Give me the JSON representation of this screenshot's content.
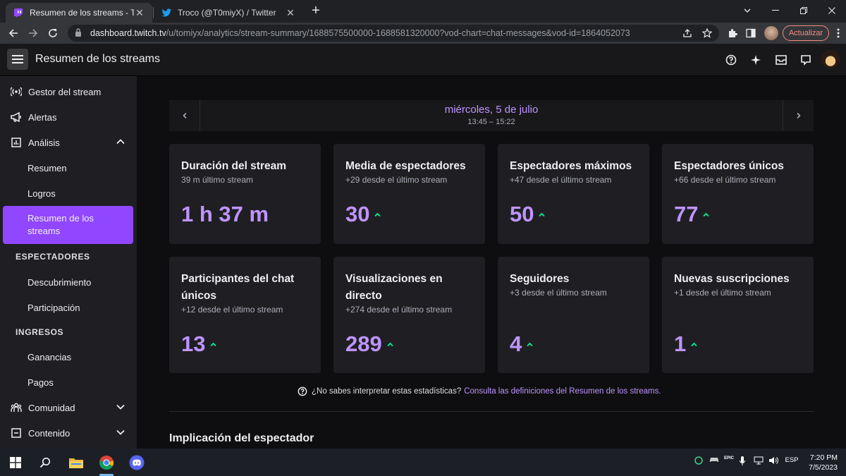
{
  "browser": {
    "tabs": [
      {
        "title": "Resumen de los streams - Twitch",
        "active": true
      },
      {
        "title": "Troco (@T0miyX) / Twitter",
        "active": false
      }
    ],
    "url_host": "dashboard.twitch.tv",
    "url_path": "/u/tomiyx/analytics/stream-summary/1688575500000-1688581320000?vod-chart=chat-messages&vod-id=1864052073",
    "update_label": "Actualizar"
  },
  "header": {
    "title": "Resumen de los streams"
  },
  "sidebar": {
    "items": [
      {
        "label": "Gestor del stream"
      },
      {
        "label": "Alertas"
      },
      {
        "label": "Análisis"
      },
      {
        "label": "Resumen"
      },
      {
        "label": "Logros"
      },
      {
        "label": "Resumen de los streams"
      },
      {
        "label": "Descubrimiento"
      },
      {
        "label": "Participación"
      },
      {
        "label": "Ganancias"
      },
      {
        "label": "Pagos"
      },
      {
        "label": "Comunidad"
      },
      {
        "label": "Contenido"
      }
    ],
    "headings": [
      "ESPECTADORES",
      "INGRESOS"
    ]
  },
  "date": {
    "main": "miércoles, 5 de julio",
    "range": "13:45 – 15:22"
  },
  "stats": [
    {
      "title": "Duración del stream",
      "sub": "39 m último stream",
      "value": "1 h 37 m",
      "trend": "none"
    },
    {
      "title": "Media de espectadores",
      "sub": "+29 desde el último stream",
      "value": "30",
      "trend": "up"
    },
    {
      "title": "Espectadores máximos",
      "sub": "+47 desde el último stream",
      "value": "50",
      "trend": "up"
    },
    {
      "title": "Espectadores únicos",
      "sub": "+66 desde el último stream",
      "value": "77",
      "trend": "up"
    },
    {
      "title": "Participantes del chat únicos",
      "sub": "+12 desde el último stream",
      "value": "13",
      "trend": "up"
    },
    {
      "title": "Visualizaciones en directo",
      "sub": "+274 desde el último stream",
      "value": "289",
      "trend": "up"
    },
    {
      "title": "Seguidores",
      "sub": "+3 desde el último stream",
      "value": "4",
      "trend": "up"
    },
    {
      "title": "Nuevas suscripciones",
      "sub": "+1 desde el último stream",
      "value": "1",
      "trend": "up"
    }
  ],
  "help": {
    "text": "¿No sabes interpretar estas estadísticas?",
    "link": "Consulta las definiciones del Resumen de los streams."
  },
  "section": {
    "title": "Implicación del espectador"
  },
  "taskbar": {
    "lang": "ESP",
    "time": "7:20 PM",
    "date": "7/5/2023",
    "tray_label": "EPIC"
  },
  "colors": {
    "accent": "#9147ff",
    "accent_text": "#bf94ff",
    "trend_up": "#00f593"
  }
}
